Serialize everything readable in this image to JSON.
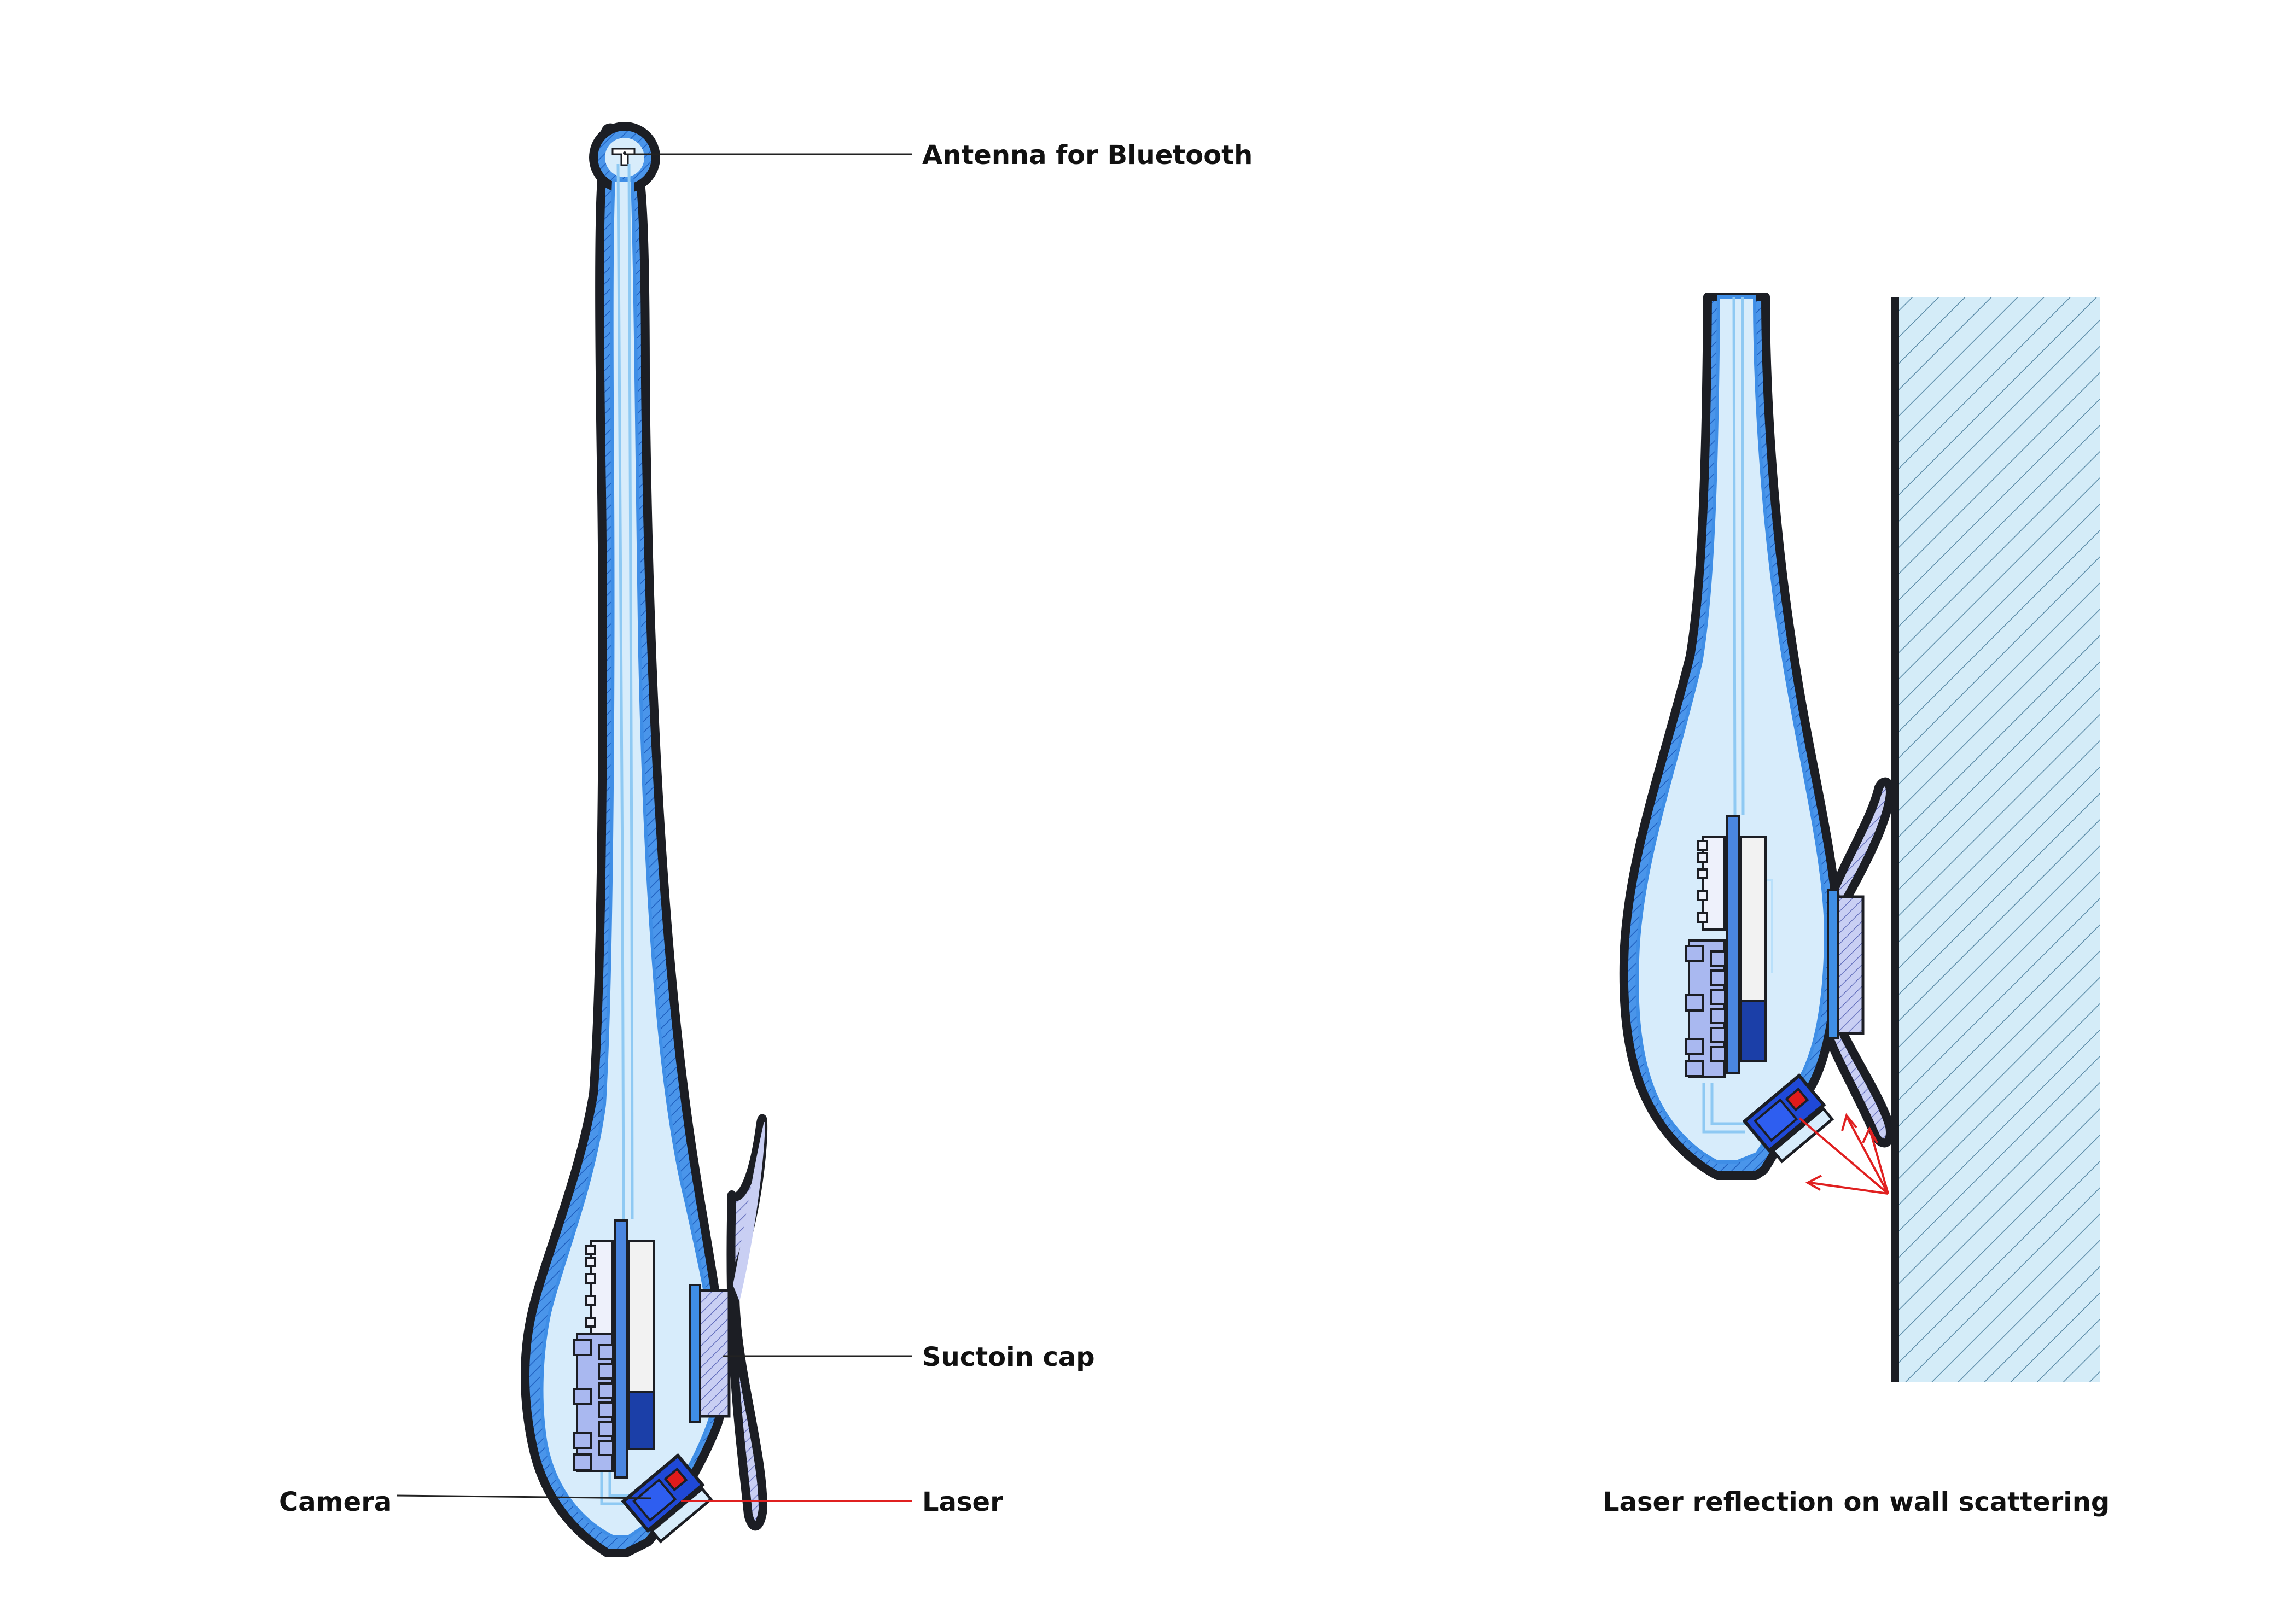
{
  "labels": {
    "antenna": "Antenna for Bluetooth",
    "suction_cap": "Suctoin cap",
    "camera": "Camera",
    "laser": "Laser",
    "wall_caption": "Laser reflection on wall scattering"
  },
  "colors": {
    "outline": "#1c1e24",
    "shell": "#3f8ee6",
    "inner_fill": "#d7ecfb",
    "pcb": "#4a86e0",
    "component": "#a9b8f0",
    "battery_white": "#f2f2f2",
    "battery_blue": "#1b3fa8",
    "camera_blue": "#1f49d8",
    "laser_red": "#e01b1b",
    "wall_fill": "#d4ecf8",
    "wall_hatch": "#5c8ca8",
    "leader_line": "#222222",
    "laser_line": "#e02020"
  }
}
